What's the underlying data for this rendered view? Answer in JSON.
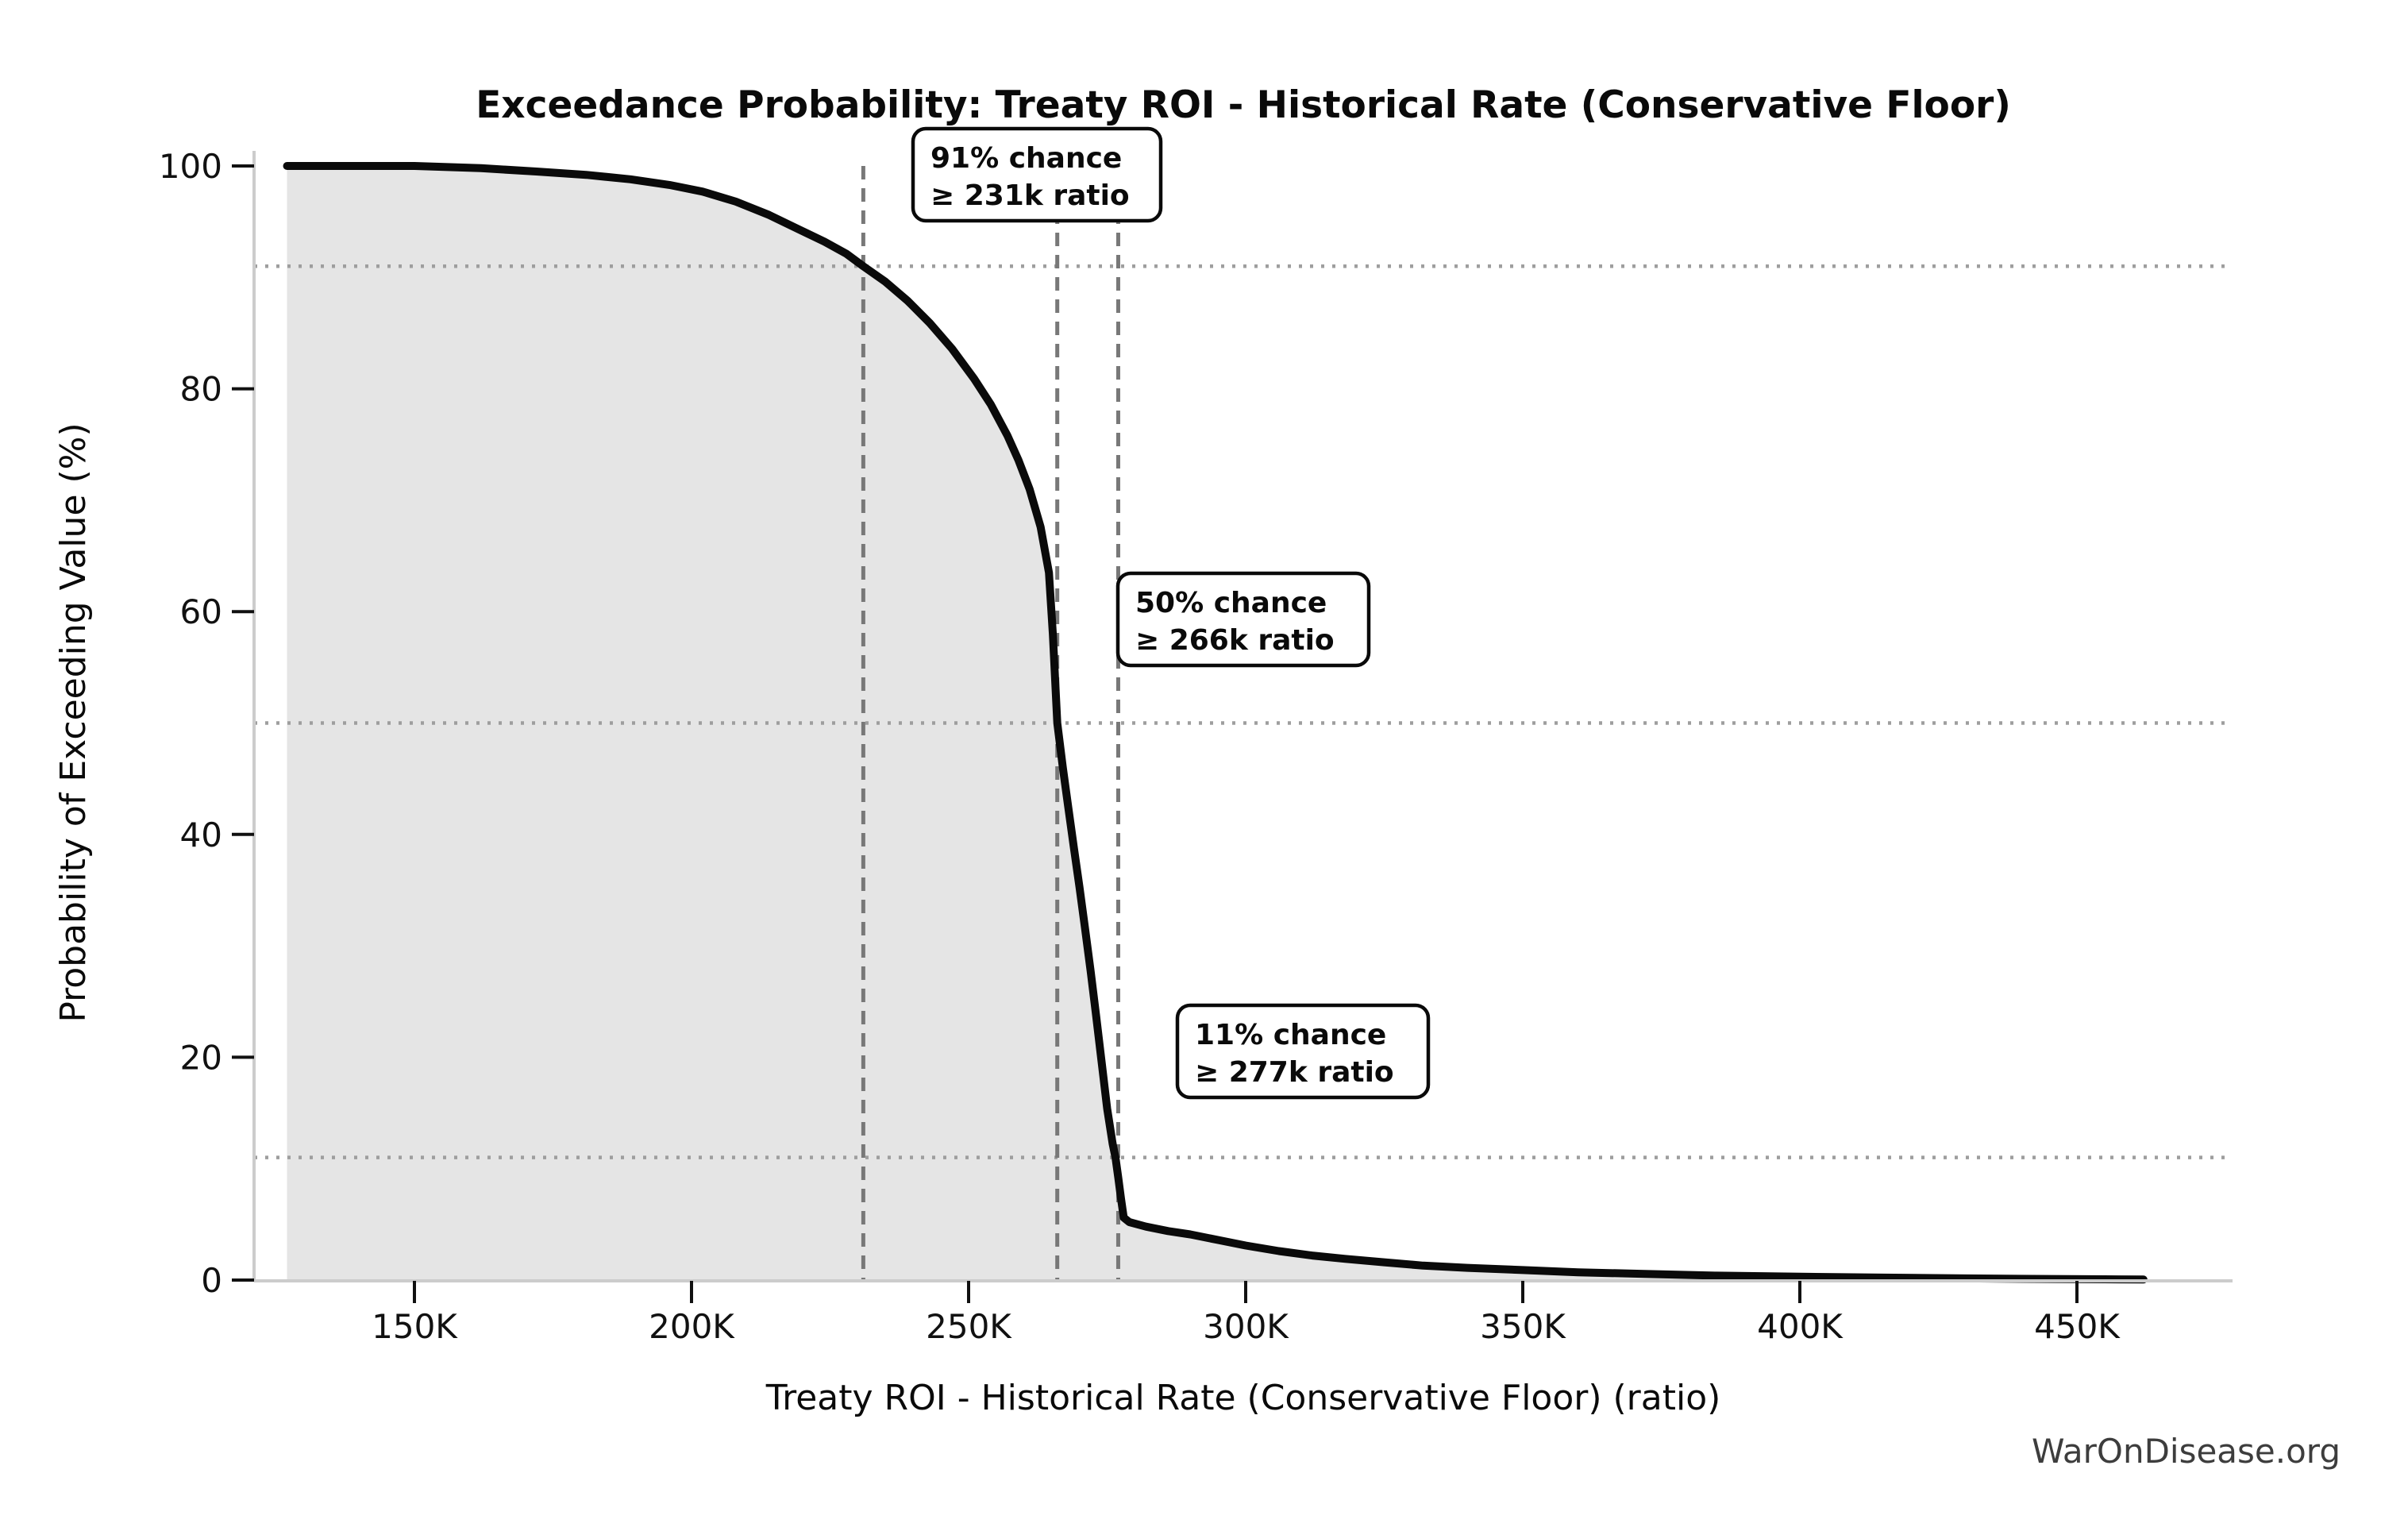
{
  "chart_data": {
    "type": "area",
    "title": "Exceedance Probability: Treaty ROI - Historical Rate (Conservative Floor)",
    "xlabel": "Treaty ROI - Historical Rate (Conservative Floor) (ratio)",
    "ylabel": "Probability of Exceeding Value (%)",
    "x_unit": "thousand (K)",
    "xlim_k": [
      121,
      478
    ],
    "ylim": [
      0,
      100
    ],
    "x_ticks": [
      {
        "value_k": 150,
        "label": "150K"
      },
      {
        "value_k": 200,
        "label": "200K"
      },
      {
        "value_k": 250,
        "label": "250K"
      },
      {
        "value_k": 300,
        "label": "300K"
      },
      {
        "value_k": 350,
        "label": "350K"
      },
      {
        "value_k": 400,
        "label": "400K"
      },
      {
        "value_k": 450,
        "label": "450K"
      }
    ],
    "y_ticks": [
      {
        "value": 0,
        "label": "0"
      },
      {
        "value": 20,
        "label": "20"
      },
      {
        "value": 40,
        "label": "40"
      },
      {
        "value": 60,
        "label": "60"
      },
      {
        "value": 80,
        "label": "80"
      },
      {
        "value": 100,
        "label": "100"
      }
    ],
    "grid": "reference lines only",
    "legend": "none",
    "series": [
      {
        "name": "exceedance-probability",
        "x_k": [
          127,
          150,
          162,
          172,
          181,
          189,
          196,
          202,
          208,
          214,
          219,
          224,
          228,
          231,
          235,
          239,
          243,
          247,
          251,
          254,
          257,
          259,
          261,
          263,
          264.5,
          265.2,
          265.6,
          266,
          267,
          268,
          269,
          270,
          271,
          272,
          273,
          274,
          275,
          276,
          276.5,
          277,
          277.5,
          278,
          279,
          282,
          286,
          290,
          295,
          300,
          306,
          312,
          318,
          325,
          332,
          340,
          350,
          360,
          372,
          385,
          400,
          415,
          430,
          445,
          455,
          462
        ],
        "y_pct": [
          100,
          100,
          99.8,
          99.5,
          99.2,
          98.8,
          98.3,
          97.7,
          96.8,
          95.6,
          94.4,
          93.2,
          92.1,
          91,
          89.6,
          87.9,
          85.9,
          83.6,
          80.9,
          78.6,
          75.8,
          73.6,
          71,
          67.6,
          63.5,
          58,
          54,
          50,
          46,
          42.4,
          38.8,
          35.3,
          31.6,
          27.8,
          23.8,
          19.6,
          15.4,
          12.2,
          11,
          9.2,
          7.3,
          5.6,
          5.2,
          4.8,
          4.4,
          4.1,
          3.6,
          3.1,
          2.6,
          2.2,
          1.9,
          1.6,
          1.3,
          1.1,
          0.9,
          0.7,
          0.55,
          0.4,
          0.3,
          0.22,
          0.15,
          0.1,
          0.07,
          0.05
        ]
      }
    ],
    "reference_hlines_pct": [
      91,
      50,
      11
    ],
    "reference_vlines_k": [
      231,
      266,
      277
    ],
    "annotations": [
      {
        "line1": "91% chance",
        "line2": "≥ 231k ratio",
        "probability_pct": 91,
        "x_k": 231
      },
      {
        "line1": "50% chance",
        "line2": "≥ 266k ratio",
        "probability_pct": 50,
        "x_k": 266
      },
      {
        "line1": "11% chance",
        "line2": "≥ 277k ratio",
        "probability_pct": 11,
        "x_k": 277
      }
    ],
    "colors": {
      "curve": "#0a0a0a",
      "area_fill": "#e5e5e5",
      "vline_dash": "#787878",
      "hline_dot": "#9e9e9e",
      "spine": "#cccccc",
      "tick": "#111111",
      "annotation_border": "#0a0a0a",
      "annotation_bg": "#ffffff",
      "watermark": "#3d3d3d",
      "background": "#ffffff"
    }
  },
  "watermark": "WarOnDisease.org"
}
